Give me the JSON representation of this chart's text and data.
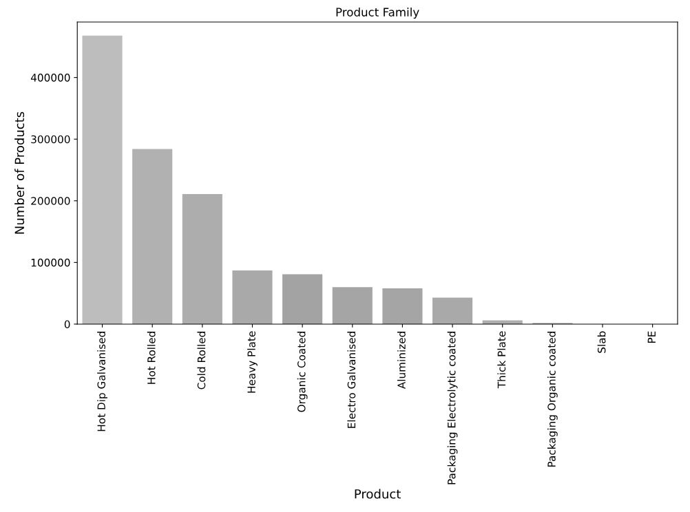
{
  "chart_data": {
    "type": "bar",
    "title": "Product Family",
    "xlabel": "Product",
    "ylabel": "Number of Products",
    "categories": [
      "Hot Dip Galvanised",
      "Hot Rolled",
      "Cold Rolled",
      "Heavy Plate",
      "Organic Coated",
      "Electro Galvanised",
      "Aluminized",
      "Packaging Electrolytic coated",
      "Thick Plate",
      "Packaging Organic coated",
      "Slab",
      "PE"
    ],
    "values": [
      468000,
      284000,
      211000,
      87000,
      81000,
      60000,
      58000,
      43000,
      6000,
      2000,
      null,
      null
    ],
    "colors": [
      "#bdbdbd",
      "#b1b1b1",
      "#adadad",
      "#a9a9a9",
      "#a3a3a3",
      "#a5a5a5",
      "#a5a5a5",
      "#a9a9a9",
      "#adadad",
      "#b1b1b1",
      "#b5b5b5",
      "#b9b9b9"
    ],
    "ylim": [
      0,
      490000
    ],
    "yticks": [
      0,
      100000,
      200000,
      300000,
      400000
    ],
    "grid": false
  }
}
